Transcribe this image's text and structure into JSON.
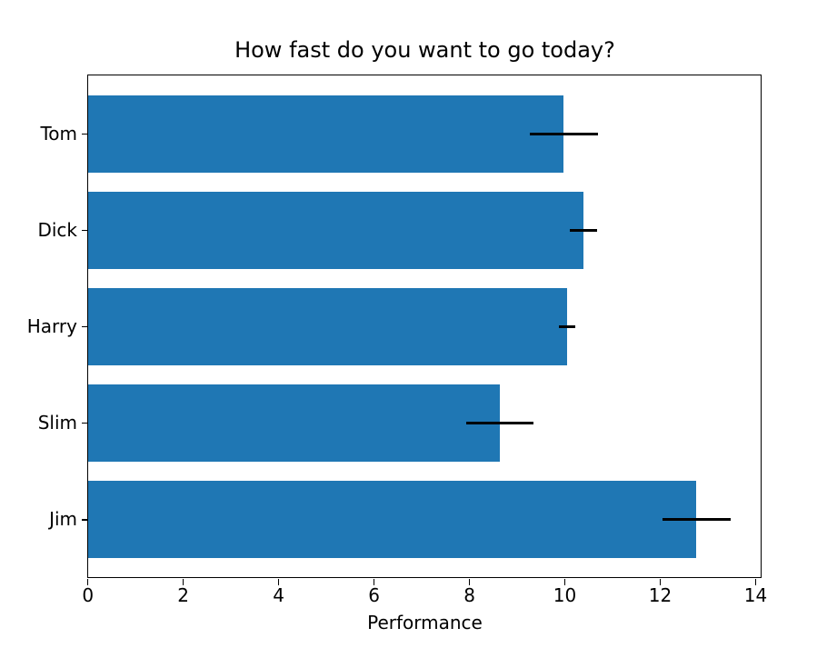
{
  "chart_data": {
    "type": "bar",
    "orientation": "horizontal",
    "title": "How fast do you want to go today?",
    "xlabel": "Performance",
    "ylabel": "",
    "categories": [
      "Tom",
      "Dick",
      "Harry",
      "Slim",
      "Jim"
    ],
    "values": [
      9.98,
      10.39,
      10.05,
      8.64,
      12.76
    ],
    "errors": [
      0.72,
      0.28,
      0.17,
      0.71,
      0.72
    ],
    "xticks": [
      0,
      2,
      4,
      6,
      8,
      10,
      12,
      14
    ],
    "xlim": [
      0,
      14.13
    ],
    "ylim_padding": [
      0.61,
      0.61
    ],
    "bar_color": "#1f77b4",
    "error_bar_color": "#000000",
    "axis_color": "#000000",
    "text_color": "#000000",
    "background_color": "#ffffff",
    "grid": false,
    "legend": "none",
    "bars_inverted_top_to_bottom": true
  }
}
